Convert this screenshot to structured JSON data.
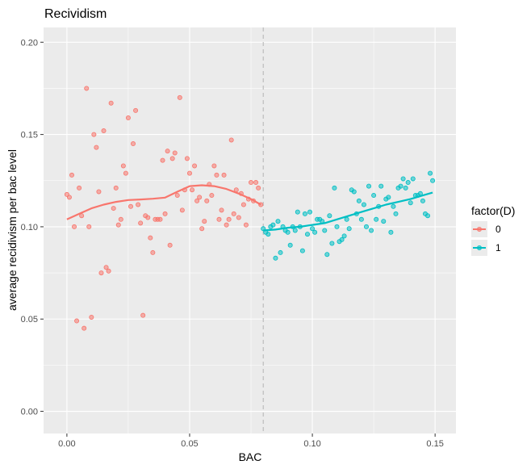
{
  "chart_data": {
    "type": "scatter",
    "title": "Recividism",
    "xlabel": "BAC",
    "ylabel": "average recidivism per bac level",
    "xlim": [
      -0.0095,
      0.1585
    ],
    "ylim": [
      -0.012,
      0.208
    ],
    "x_ticks": [
      0.0,
      0.05,
      0.1,
      0.15
    ],
    "x_tick_labels": [
      "0.00",
      "0.05",
      "0.10",
      "0.15"
    ],
    "y_ticks": [
      0.0,
      0.05,
      0.1,
      0.15,
      0.2
    ],
    "y_tick_labels": [
      "0.00",
      "0.05",
      "0.10",
      "0.15",
      "0.20"
    ],
    "cutoff_line": 0.08,
    "grid": true,
    "legend": {
      "title": "factor(D)",
      "position": "right",
      "entries": [
        "0",
        "1"
      ]
    },
    "colors": {
      "panel_background": "#ebebeb",
      "grid": "#ffffff",
      "group0": "#f8766d",
      "group1": "#00bfc4",
      "cutoff": "#bdbdbd"
    },
    "series": [
      {
        "name": "0",
        "points": [
          [
            0.0,
            0.1175
          ],
          [
            0.001,
            0.116
          ],
          [
            0.002,
            0.128
          ],
          [
            0.003,
            0.1
          ],
          [
            0.004,
            0.049
          ],
          [
            0.005,
            0.121
          ],
          [
            0.006,
            0.106
          ],
          [
            0.007,
            0.045
          ],
          [
            0.008,
            0.175
          ],
          [
            0.009,
            0.1
          ],
          [
            0.01,
            0.051
          ],
          [
            0.011,
            0.15
          ],
          [
            0.012,
            0.143
          ],
          [
            0.013,
            0.119
          ],
          [
            0.014,
            0.075
          ],
          [
            0.015,
            0.152
          ],
          [
            0.016,
            0.078
          ],
          [
            0.017,
            0.076
          ],
          [
            0.018,
            0.167
          ],
          [
            0.019,
            0.11
          ],
          [
            0.02,
            0.121
          ],
          [
            0.021,
            0.101
          ],
          [
            0.022,
            0.104
          ],
          [
            0.023,
            0.133
          ],
          [
            0.024,
            0.129
          ],
          [
            0.025,
            0.159
          ],
          [
            0.026,
            0.111
          ],
          [
            0.027,
            0.145
          ],
          [
            0.028,
            0.163
          ],
          [
            0.029,
            0.112
          ],
          [
            0.03,
            0.102
          ],
          [
            0.031,
            0.052
          ],
          [
            0.032,
            0.106
          ],
          [
            0.033,
            0.105
          ],
          [
            0.034,
            0.094
          ],
          [
            0.035,
            0.086
          ],
          [
            0.036,
            0.104
          ],
          [
            0.037,
            0.104
          ],
          [
            0.038,
            0.104
          ],
          [
            0.039,
            0.136
          ],
          [
            0.04,
            0.107
          ],
          [
            0.041,
            0.141
          ],
          [
            0.042,
            0.09
          ],
          [
            0.043,
            0.137
          ],
          [
            0.044,
            0.14
          ],
          [
            0.045,
            0.117
          ],
          [
            0.046,
            0.17
          ],
          [
            0.047,
            0.109
          ],
          [
            0.048,
            0.12
          ],
          [
            0.049,
            0.137
          ],
          [
            0.05,
            0.129
          ],
          [
            0.051,
            0.12
          ],
          [
            0.052,
            0.133
          ],
          [
            0.053,
            0.114
          ],
          [
            0.054,
            0.116
          ],
          [
            0.055,
            0.099
          ],
          [
            0.056,
            0.103
          ],
          [
            0.057,
            0.114
          ],
          [
            0.058,
            0.123
          ],
          [
            0.059,
            0.117
          ],
          [
            0.06,
            0.133
          ],
          [
            0.061,
            0.128
          ],
          [
            0.062,
            0.104
          ],
          [
            0.063,
            0.109
          ],
          [
            0.064,
            0.128
          ],
          [
            0.065,
            0.101
          ],
          [
            0.066,
            0.104
          ],
          [
            0.067,
            0.147
          ],
          [
            0.068,
            0.107
          ],
          [
            0.069,
            0.12
          ],
          [
            0.07,
            0.105
          ],
          [
            0.071,
            0.118
          ],
          [
            0.072,
            0.112
          ],
          [
            0.073,
            0.101
          ],
          [
            0.074,
            0.115
          ],
          [
            0.075,
            0.124
          ],
          [
            0.076,
            0.114
          ],
          [
            0.077,
            0.124
          ],
          [
            0.078,
            0.121
          ],
          [
            0.079,
            0.112
          ]
        ],
        "smooth": [
          [
            0.0,
            0.104
          ],
          [
            0.005,
            0.107
          ],
          [
            0.01,
            0.11
          ],
          [
            0.015,
            0.112
          ],
          [
            0.02,
            0.1135
          ],
          [
            0.025,
            0.1145
          ],
          [
            0.03,
            0.1148
          ],
          [
            0.035,
            0.1152
          ],
          [
            0.04,
            0.1158
          ],
          [
            0.045,
            0.119
          ],
          [
            0.05,
            0.122
          ],
          [
            0.055,
            0.1225
          ],
          [
            0.06,
            0.122
          ],
          [
            0.065,
            0.1205
          ],
          [
            0.07,
            0.118
          ],
          [
            0.075,
            0.115
          ],
          [
            0.079,
            0.112
          ]
        ]
      },
      {
        "name": "1",
        "points": [
          [
            0.08,
            0.099
          ],
          [
            0.081,
            0.097
          ],
          [
            0.082,
            0.096
          ],
          [
            0.083,
            0.1
          ],
          [
            0.084,
            0.101
          ],
          [
            0.085,
            0.083
          ],
          [
            0.086,
            0.103
          ],
          [
            0.087,
            0.086
          ],
          [
            0.088,
            0.1
          ],
          [
            0.089,
            0.098
          ],
          [
            0.09,
            0.097
          ],
          [
            0.091,
            0.09
          ],
          [
            0.092,
            0.1
          ],
          [
            0.093,
            0.098
          ],
          [
            0.094,
            0.108
          ],
          [
            0.095,
            0.1
          ],
          [
            0.096,
            0.087
          ],
          [
            0.097,
            0.107
          ],
          [
            0.098,
            0.096
          ],
          [
            0.099,
            0.108
          ],
          [
            0.1,
            0.099
          ],
          [
            0.101,
            0.097
          ],
          [
            0.102,
            0.104
          ],
          [
            0.103,
            0.104
          ],
          [
            0.104,
            0.103
          ],
          [
            0.105,
            0.098
          ],
          [
            0.106,
            0.085
          ],
          [
            0.107,
            0.106
          ],
          [
            0.108,
            0.091
          ],
          [
            0.109,
            0.121
          ],
          [
            0.11,
            0.1
          ],
          [
            0.111,
            0.092
          ],
          [
            0.112,
            0.093
          ],
          [
            0.113,
            0.095
          ],
          [
            0.114,
            0.104
          ],
          [
            0.115,
            0.099
          ],
          [
            0.116,
            0.12
          ],
          [
            0.117,
            0.119
          ],
          [
            0.118,
            0.107
          ],
          [
            0.119,
            0.114
          ],
          [
            0.12,
            0.104
          ],
          [
            0.121,
            0.112
          ],
          [
            0.122,
            0.1
          ],
          [
            0.123,
            0.122
          ],
          [
            0.124,
            0.098
          ],
          [
            0.125,
            0.117
          ],
          [
            0.126,
            0.104
          ],
          [
            0.127,
            0.111
          ],
          [
            0.128,
            0.122
          ],
          [
            0.129,
            0.103
          ],
          [
            0.13,
            0.115
          ],
          [
            0.131,
            0.116
          ],
          [
            0.132,
            0.097
          ],
          [
            0.133,
            0.111
          ],
          [
            0.134,
            0.107
          ],
          [
            0.135,
            0.121
          ],
          [
            0.136,
            0.122
          ],
          [
            0.137,
            0.126
          ],
          [
            0.138,
            0.121
          ],
          [
            0.139,
            0.124
          ],
          [
            0.14,
            0.113
          ],
          [
            0.141,
            0.126
          ],
          [
            0.142,
            0.117
          ],
          [
            0.143,
            0.117
          ],
          [
            0.144,
            0.118
          ],
          [
            0.145,
            0.114
          ],
          [
            0.146,
            0.107
          ],
          [
            0.147,
            0.106
          ],
          [
            0.148,
            0.129
          ],
          [
            0.149,
            0.125
          ]
        ],
        "smooth": [
          [
            0.08,
            0.098
          ],
          [
            0.085,
            0.0985
          ],
          [
            0.09,
            0.0995
          ],
          [
            0.095,
            0.1
          ],
          [
            0.1,
            0.101
          ],
          [
            0.105,
            0.102
          ],
          [
            0.11,
            0.104
          ],
          [
            0.115,
            0.106
          ],
          [
            0.12,
            0.108
          ],
          [
            0.125,
            0.11
          ],
          [
            0.13,
            0.112
          ],
          [
            0.135,
            0.1135
          ],
          [
            0.14,
            0.115
          ],
          [
            0.145,
            0.117
          ],
          [
            0.149,
            0.1185
          ]
        ]
      }
    ]
  }
}
